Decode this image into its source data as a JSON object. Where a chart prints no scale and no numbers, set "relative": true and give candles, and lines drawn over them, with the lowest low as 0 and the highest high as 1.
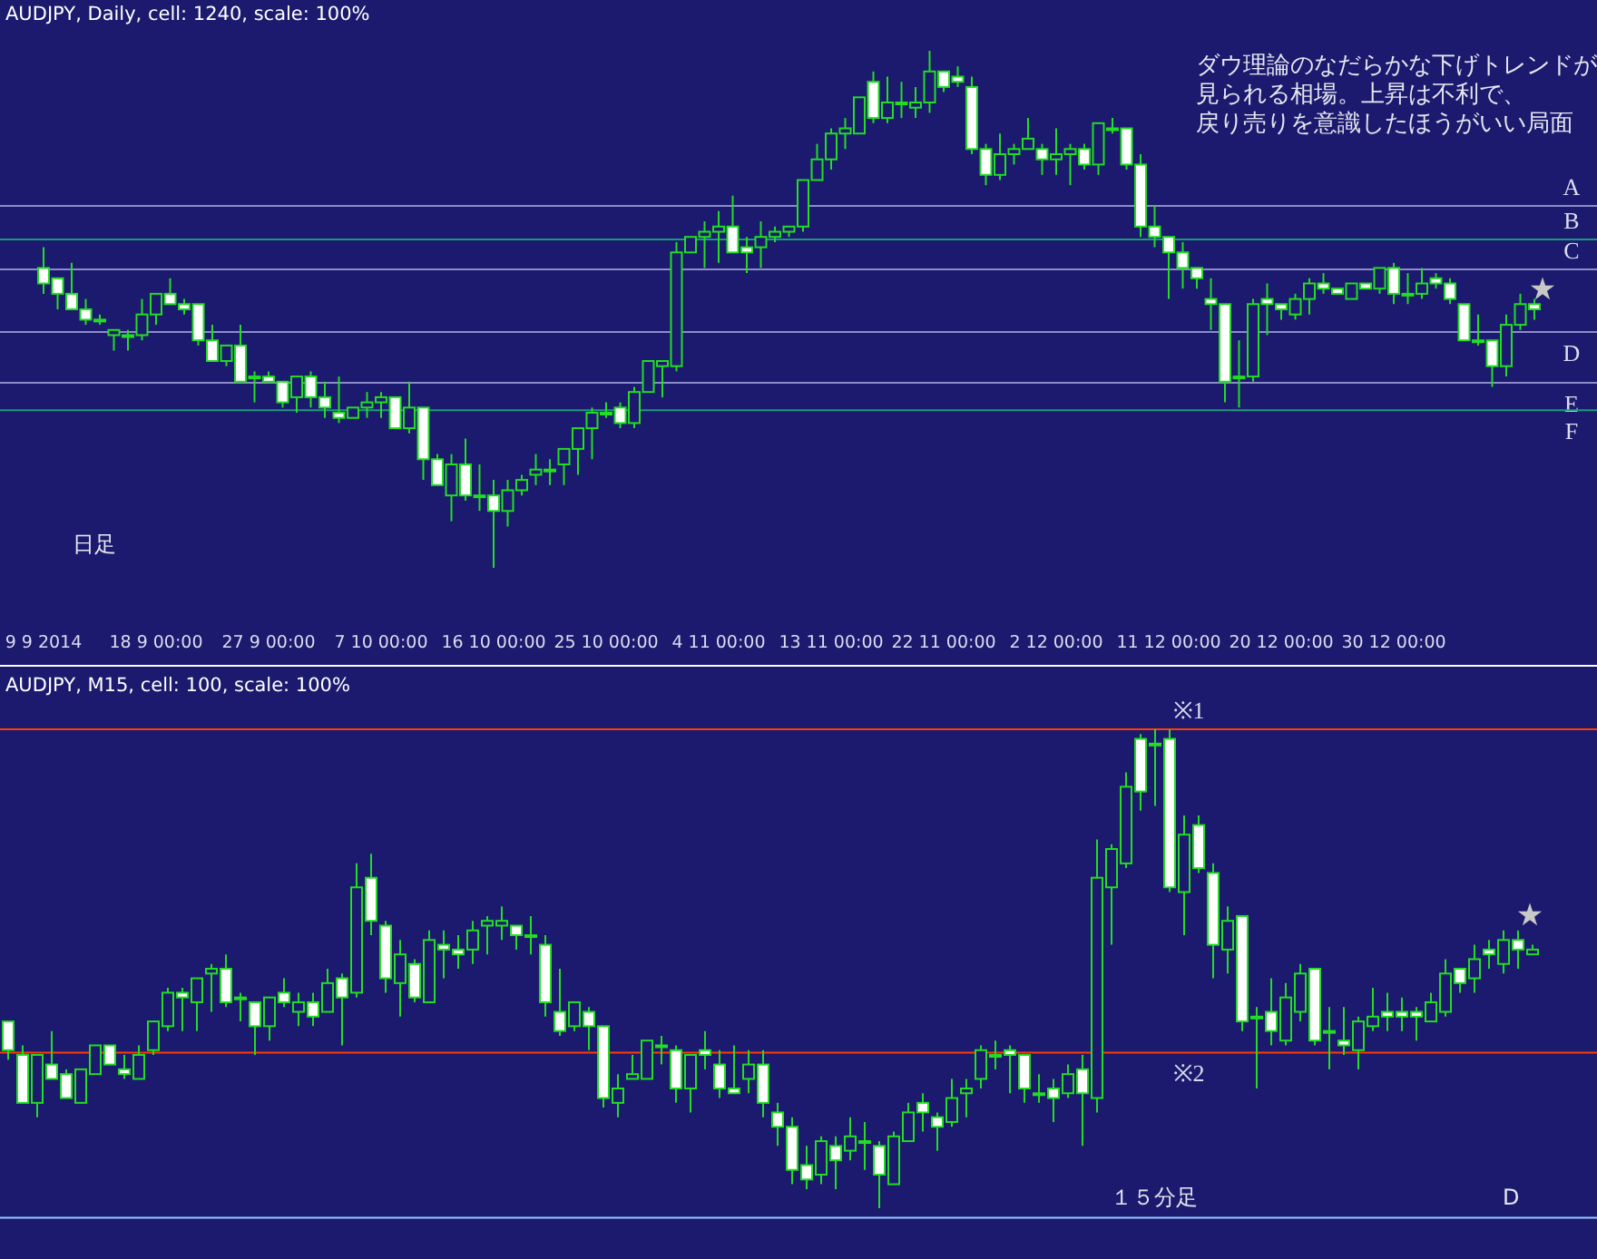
{
  "chart_data": [
    {
      "type": "candlestick",
      "title": "AUDJPY, Daily, cell: 1240, scale: 100%",
      "relative": true,
      "categories": [
        "9 9 2014",
        null,
        null,
        null,
        null,
        null,
        null,
        null,
        "18 9 00:00",
        null,
        null,
        null,
        null,
        null,
        null,
        null,
        "27 9 00:00",
        null,
        null,
        null,
        null,
        null,
        null,
        null,
        "7 10 00:00",
        null,
        null,
        null,
        null,
        null,
        null,
        null,
        "16 10 00:00",
        null,
        null,
        null,
        null,
        null,
        null,
        null,
        "25 10 00:00",
        null,
        null,
        null,
        null,
        null,
        null,
        null,
        "4 11 00:00",
        null,
        null,
        null,
        null,
        null,
        null,
        null,
        "13 11 00:00",
        null,
        null,
        null,
        null,
        null,
        null,
        null,
        "22 11 00:00",
        null,
        null,
        null,
        null,
        null,
        null,
        null,
        "2 12 00:00",
        null,
        null,
        null,
        null,
        null,
        null,
        null,
        "11 12 00:00",
        null,
        null,
        null,
        null,
        null,
        null,
        null,
        "20 12 00:00",
        null,
        null,
        null,
        null,
        null,
        null,
        null,
        "30 12 00:00",
        null,
        null,
        null,
        null,
        null,
        null,
        null,
        null,
        null,
        null
      ],
      "ohlc": [
        [
          0.58,
          0.62,
          0.53,
          0.55
        ],
        [
          0.56,
          0.56,
          0.5,
          0.53
        ],
        [
          0.53,
          0.59,
          0.5,
          0.5
        ],
        [
          0.5,
          0.52,
          0.47,
          0.48
        ],
        [
          0.48,
          0.49,
          0.47,
          0.48
        ],
        [
          0.45,
          0.46,
          0.42,
          0.46
        ],
        [
          0.45,
          0.46,
          0.42,
          0.45
        ],
        [
          0.45,
          0.52,
          0.44,
          0.49
        ],
        [
          0.49,
          0.53,
          0.47,
          0.53
        ],
        [
          0.53,
          0.56,
          0.51,
          0.51
        ],
        [
          0.51,
          0.52,
          0.49,
          0.5
        ],
        [
          0.51,
          0.51,
          0.43,
          0.44
        ],
        [
          0.44,
          0.47,
          0.4,
          0.4
        ],
        [
          0.4,
          0.43,
          0.39,
          0.43
        ],
        [
          0.43,
          0.47,
          0.36,
          0.36
        ],
        [
          0.37,
          0.38,
          0.32,
          0.37
        ],
        [
          0.37,
          0.38,
          0.36,
          0.36
        ],
        [
          0.36,
          0.36,
          0.31,
          0.32
        ],
        [
          0.33,
          0.37,
          0.3,
          0.37
        ],
        [
          0.37,
          0.38,
          0.31,
          0.33
        ],
        [
          0.33,
          0.36,
          0.29,
          0.31
        ],
        [
          0.3,
          0.37,
          0.28,
          0.29
        ],
        [
          0.29,
          0.31,
          0.29,
          0.31
        ],
        [
          0.31,
          0.34,
          0.29,
          0.32
        ],
        [
          0.32,
          0.34,
          0.29,
          0.33
        ],
        [
          0.33,
          0.33,
          0.27,
          0.27
        ],
        [
          0.27,
          0.36,
          0.26,
          0.31
        ],
        [
          0.31,
          0.31,
          0.17,
          0.21
        ],
        [
          0.21,
          0.22,
          0.16,
          0.16
        ],
        [
          0.14,
          0.22,
          0.09,
          0.2
        ],
        [
          0.2,
          0.25,
          0.13,
          0.14
        ],
        [
          0.14,
          0.2,
          0.11,
          0.14
        ],
        [
          0.14,
          0.17,
          0,
          0.11
        ],
        [
          0.11,
          0.17,
          0.08,
          0.15
        ],
        [
          0.15,
          0.18,
          0.14,
          0.17
        ],
        [
          0.18,
          0.22,
          0.16,
          0.19
        ],
        [
          0.19,
          0.21,
          0.16,
          0.19
        ],
        [
          0.2,
          0.23,
          0.16,
          0.23
        ],
        [
          0.23,
          0.27,
          0.18,
          0.27
        ],
        [
          0.27,
          0.31,
          0.21,
          0.3
        ],
        [
          0.3,
          0.32,
          0.29,
          0.3
        ],
        [
          0.31,
          0.32,
          0.27,
          0.28
        ],
        [
          0.28,
          0.35,
          0.27,
          0.34
        ],
        [
          0.34,
          0.4,
          0.34,
          0.4
        ],
        [
          0.39,
          0.4,
          0.33,
          0.4
        ],
        [
          0.39,
          0.63,
          0.38,
          0.61
        ],
        [
          0.61,
          0.64,
          0.61,
          0.64
        ],
        [
          0.64,
          0.67,
          0.58,
          0.65
        ],
        [
          0.65,
          0.69,
          0.59,
          0.66
        ],
        [
          0.66,
          0.72,
          0.61,
          0.61
        ],
        [
          0.62,
          0.64,
          0.57,
          0.61
        ],
        [
          0.62,
          0.67,
          0.58,
          0.64
        ],
        [
          0.64,
          0.66,
          0.63,
          0.65
        ],
        [
          0.65,
          0.66,
          0.64,
          0.66
        ],
        [
          0.66,
          0.75,
          0.65,
          0.75
        ],
        [
          0.75,
          0.82,
          0.75,
          0.79
        ],
        [
          0.79,
          0.85,
          0.77,
          0.84
        ],
        [
          0.84,
          0.87,
          0.81,
          0.85
        ],
        [
          0.84,
          0.91,
          0.84,
          0.91
        ],
        [
          0.94,
          0.96,
          0.86,
          0.87
        ],
        [
          0.87,
          0.95,
          0.86,
          0.9
        ],
        [
          0.9,
          0.94,
          0.87,
          0.9
        ],
        [
          0.89,
          0.93,
          0.87,
          0.9
        ],
        [
          0.9,
          1,
          0.88,
          0.96
        ],
        [
          0.96,
          0.96,
          0.92,
          0.93
        ],
        [
          0.95,
          0.97,
          0.93,
          0.94
        ],
        [
          0.93,
          0.95,
          0.8,
          0.81
        ],
        [
          0.81,
          0.82,
          0.74,
          0.76
        ],
        [
          0.76,
          0.84,
          0.75,
          0.8
        ],
        [
          0.8,
          0.82,
          0.78,
          0.81
        ],
        [
          0.81,
          0.87,
          0.81,
          0.83
        ],
        [
          0.81,
          0.82,
          0.76,
          0.79
        ],
        [
          0.79,
          0.85,
          0.76,
          0.8
        ],
        [
          0.8,
          0.82,
          0.74,
          0.81
        ],
        [
          0.81,
          0.82,
          0.77,
          0.78
        ],
        [
          0.78,
          0.86,
          0.76,
          0.86
        ],
        [
          0.85,
          0.87,
          0.84,
          0.85
        ],
        [
          0.85,
          0.85,
          0.77,
          0.78
        ],
        [
          0.78,
          0.8,
          0.64,
          0.66
        ],
        [
          0.66,
          0.7,
          0.62,
          0.64
        ],
        [
          0.64,
          0.64,
          0.52,
          0.61
        ],
        [
          0.61,
          0.63,
          0.54,
          0.58
        ],
        [
          0.58,
          0.58,
          0.54,
          0.56
        ],
        [
          0.52,
          0.56,
          0.46,
          0.51
        ],
        [
          0.51,
          0.51,
          0.32,
          0.36
        ],
        [
          0.37,
          0.44,
          0.31,
          0.37
        ],
        [
          0.37,
          0.52,
          0.36,
          0.51
        ],
        [
          0.52,
          0.55,
          0.45,
          0.51
        ],
        [
          0.51,
          0.51,
          0.48,
          0.5
        ],
        [
          0.49,
          0.53,
          0.48,
          0.52
        ],
        [
          0.52,
          0.56,
          0.49,
          0.55
        ],
        [
          0.55,
          0.57,
          0.53,
          0.54
        ],
        [
          0.54,
          0.54,
          0.53,
          0.53
        ],
        [
          0.52,
          0.55,
          0.52,
          0.55
        ],
        [
          0.55,
          0.55,
          0.54,
          0.54
        ],
        [
          0.54,
          0.58,
          0.53,
          0.58
        ],
        [
          0.58,
          0.59,
          0.51,
          0.53
        ],
        [
          0.53,
          0.57,
          0.51,
          0.53
        ],
        [
          0.53,
          0.58,
          0.52,
          0.55
        ],
        [
          0.56,
          0.57,
          0.54,
          0.55
        ],
        [
          0.55,
          0.56,
          0.51,
          0.52
        ],
        [
          0.51,
          0.51,
          0.44,
          0.44
        ],
        [
          0.44,
          0.49,
          0.43,
          0.44
        ],
        [
          0.44,
          0.44,
          0.35,
          0.39
        ],
        [
          0.39,
          0.49,
          0.37,
          0.47
        ],
        [
          0.47,
          0.53,
          0.46,
          0.51
        ],
        [
          0.51,
          0.52,
          0.48,
          0.5
        ]
      ],
      "ref_lines": [
        {
          "axis": "y",
          "value": 0.7,
          "label": "A",
          "color": "#8c8cc8"
        },
        {
          "axis": "y",
          "value": 0.635,
          "label": "B",
          "color": "#1a9a7a"
        },
        {
          "axis": "y",
          "value": 0.577,
          "label": "C",
          "color": "#8c8cc8"
        },
        {
          "axis": "y",
          "value": 0.456,
          "label": "D",
          "color": "#8c8cc8"
        },
        {
          "axis": "y",
          "value": 0.358,
          "label": "E",
          "color": "#8c8cc8"
        },
        {
          "axis": "y",
          "value": 0.305,
          "label": "F",
          "color": "#1a9a7a"
        }
      ],
      "annotations": [
        "ダウ理論のなだらかな下げトレンドが",
        "見られる相場。上昇は不利で、",
        "戻り売りを意識したほうがいい局面",
        "日足",
        "★"
      ]
    },
    {
      "type": "candlestick",
      "title": "AUDJPY, M15, cell: 100, scale: 100%",
      "relative": true,
      "categories": [
        null,
        null,
        null,
        null,
        null,
        null,
        null,
        null,
        null,
        null,
        null,
        null,
        null,
        null,
        null,
        null,
        null,
        null,
        null,
        null,
        null,
        null,
        null,
        null,
        null,
        null,
        null,
        null,
        null,
        null,
        null,
        null,
        null,
        null,
        null,
        null,
        null,
        null,
        null,
        null,
        null,
        null,
        null,
        null,
        null,
        null,
        null,
        null,
        null,
        null,
        null,
        null,
        null,
        null,
        null,
        null,
        null,
        null,
        null,
        null,
        null,
        null,
        null,
        null,
        null,
        null,
        null,
        null,
        null,
        null,
        null,
        null,
        null,
        null,
        null,
        null,
        null,
        null,
        null,
        null,
        null,
        null,
        null,
        null,
        null,
        null,
        null,
        null,
        null,
        null,
        null,
        null,
        null,
        null,
        null,
        null,
        null,
        null,
        null,
        null,
        null,
        null,
        null,
        null,
        null,
        null
      ],
      "ohlc": [
        [
          0.39,
          0.39,
          0.31,
          0.33
        ],
        [
          0.32,
          0.34,
          0.22,
          0.22
        ],
        [
          0.22,
          0.32,
          0.19,
          0.32
        ],
        [
          0.3,
          0.37,
          0.27,
          0.27
        ],
        [
          0.28,
          0.29,
          0.23,
          0.23
        ],
        [
          0.22,
          0.29,
          0.22,
          0.29
        ],
        [
          0.28,
          0.34,
          0.28,
          0.34
        ],
        [
          0.34,
          0.34,
          0.3,
          0.3
        ],
        [
          0.29,
          0.32,
          0.27,
          0.28
        ],
        [
          0.27,
          0.34,
          0.27,
          0.32
        ],
        [
          0.33,
          0.39,
          0.32,
          0.39
        ],
        [
          0.38,
          0.46,
          0.37,
          0.45
        ],
        [
          0.45,
          0.46,
          0.37,
          0.44
        ],
        [
          0.43,
          0.48,
          0.37,
          0.48
        ],
        [
          0.49,
          0.51,
          0.41,
          0.5
        ],
        [
          0.5,
          0.53,
          0.42,
          0.43
        ],
        [
          0.44,
          0.45,
          0.39,
          0.44
        ],
        [
          0.43,
          0.43,
          0.32,
          0.38
        ],
        [
          0.38,
          0.44,
          0.35,
          0.44
        ],
        [
          0.45,
          0.48,
          0.42,
          0.43
        ],
        [
          0.41,
          0.45,
          0.38,
          0.43
        ],
        [
          0.43,
          0.45,
          0.38,
          0.4
        ],
        [
          0.41,
          0.5,
          0.41,
          0.47
        ],
        [
          0.48,
          0.49,
          0.34,
          0.44
        ],
        [
          0.45,
          0.72,
          0.44,
          0.67
        ],
        [
          0.69,
          0.74,
          0.57,
          0.6
        ],
        [
          0.59,
          0.6,
          0.45,
          0.48
        ],
        [
          0.47,
          0.56,
          0.4,
          0.53
        ],
        [
          0.51,
          0.52,
          0.43,
          0.44
        ],
        [
          0.43,
          0.58,
          0.43,
          0.56
        ],
        [
          0.55,
          0.58,
          0.48,
          0.54
        ],
        [
          0.54,
          0.57,
          0.5,
          0.53
        ],
        [
          0.54,
          0.6,
          0.51,
          0.58
        ],
        [
          0.59,
          0.61,
          0.53,
          0.6
        ],
        [
          0.59,
          0.63,
          0.56,
          0.6
        ],
        [
          0.59,
          0.59,
          0.54,
          0.57
        ],
        [
          0.57,
          0.61,
          0.53,
          0.57
        ],
        [
          0.55,
          0.57,
          0.4,
          0.43
        ],
        [
          0.41,
          0.5,
          0.36,
          0.37
        ],
        [
          0.38,
          0.43,
          0.37,
          0.43
        ],
        [
          0.41,
          0.42,
          0.33,
          0.38
        ],
        [
          0.38,
          0.38,
          0.21,
          0.23
        ],
        [
          0.22,
          0.28,
          0.19,
          0.25
        ],
        [
          0.27,
          0.32,
          0.27,
          0.28
        ],
        [
          0.27,
          0.35,
          0.27,
          0.35
        ],
        [
          0.34,
          0.36,
          0.3,
          0.34
        ],
        [
          0.33,
          0.34,
          0.22,
          0.25
        ],
        [
          0.25,
          0.32,
          0.2,
          0.32
        ],
        [
          0.33,
          0.37,
          0.29,
          0.32
        ],
        [
          0.3,
          0.33,
          0.23,
          0.25
        ],
        [
          0.25,
          0.34,
          0.24,
          0.24
        ],
        [
          0.27,
          0.33,
          0.24,
          0.3
        ],
        [
          0.3,
          0.33,
          0.19,
          0.22
        ],
        [
          0.2,
          0.22,
          0.13,
          0.17
        ],
        [
          0.17,
          0.19,
          0.05,
          0.08
        ],
        [
          0.09,
          0.13,
          0.04,
          0.06
        ],
        [
          0.07,
          0.15,
          0.05,
          0.14
        ],
        [
          0.13,
          0.15,
          0.04,
          0.1
        ],
        [
          0.12,
          0.19,
          0.1,
          0.15
        ],
        [
          0.14,
          0.18,
          0.08,
          0.14
        ],
        [
          0.13,
          0.14,
          0,
          0.07
        ],
        [
          0.05,
          0.16,
          0.05,
          0.15
        ],
        [
          0.14,
          0.22,
          0.14,
          0.2
        ],
        [
          0.22,
          0.24,
          0.16,
          0.2
        ],
        [
          0.19,
          0.2,
          0.12,
          0.17
        ],
        [
          0.18,
          0.27,
          0.17,
          0.23
        ],
        [
          0.24,
          0.27,
          0.19,
          0.25
        ],
        [
          0.27,
          0.34,
          0.25,
          0.33
        ],
        [
          0.32,
          0.35,
          0.29,
          0.32
        ],
        [
          0.33,
          0.34,
          0.24,
          0.32
        ],
        [
          0.32,
          0.32,
          0.22,
          0.25
        ],
        [
          0.24,
          0.28,
          0.22,
          0.24
        ],
        [
          0.25,
          0.27,
          0.18,
          0.23
        ],
        [
          0.24,
          0.3,
          0.23,
          0.28
        ],
        [
          0.29,
          0.32,
          0.13,
          0.24
        ],
        [
          0.23,
          0.77,
          0.2,
          0.69
        ],
        [
          0.67,
          0.76,
          0.55,
          0.75
        ],
        [
          0.72,
          0.91,
          0.71,
          0.88
        ],
        [
          0.98,
          0.99,
          0.83,
          0.87
        ],
        [
          0.97,
          1,
          0.84,
          0.97
        ],
        [
          0.98,
          1,
          0.66,
          0.67
        ],
        [
          0.66,
          0.82,
          0.57,
          0.78
        ],
        [
          0.8,
          0.82,
          0.7,
          0.71
        ],
        [
          0.7,
          0.72,
          0.48,
          0.55
        ],
        [
          0.54,
          0.63,
          0.49,
          0.6
        ],
        [
          0.61,
          0.61,
          0.37,
          0.39
        ],
        [
          0.4,
          0.42,
          0.25,
          0.4
        ],
        [
          0.41,
          0.48,
          0.34,
          0.37
        ],
        [
          0.35,
          0.47,
          0.34,
          0.44
        ],
        [
          0.41,
          0.51,
          0.39,
          0.49
        ],
        [
          0.5,
          0.5,
          0.34,
          0.35
        ],
        [
          0.37,
          0.42,
          0.29,
          0.37
        ],
        [
          0.35,
          0.42,
          0.32,
          0.34
        ],
        [
          0.33,
          0.4,
          0.29,
          0.39
        ],
        [
          0.38,
          0.46,
          0.37,
          0.4
        ],
        [
          0.41,
          0.45,
          0.37,
          0.4
        ],
        [
          0.41,
          0.44,
          0.37,
          0.4
        ],
        [
          0.41,
          0.42,
          0.35,
          0.4
        ],
        [
          0.39,
          0.45,
          0.39,
          0.43
        ],
        [
          0.41,
          0.52,
          0.4,
          0.49
        ],
        [
          0.5,
          0.5,
          0.45,
          0.47
        ],
        [
          0.48,
          0.55,
          0.45,
          0.52
        ],
        [
          0.54,
          0.56,
          0.5,
          0.53
        ],
        [
          0.51,
          0.58,
          0.49,
          0.56
        ],
        [
          0.56,
          0.58,
          0.5,
          0.54
        ],
        [
          0.53,
          0.55,
          0.53,
          0.54
        ]
      ],
      "ref_lines": [
        {
          "axis": "y",
          "value": 1,
          "label": "※1",
          "color": "#ff3c00"
        },
        {
          "axis": "y",
          "value": 0.325,
          "label": "※2",
          "color": "#ff3c00"
        },
        {
          "axis": "y",
          "value": -0.02,
          "color": "#9ac8ff"
        }
      ],
      "annotations": [
        "１５分足",
        "D",
        "★"
      ]
    }
  ]
}
